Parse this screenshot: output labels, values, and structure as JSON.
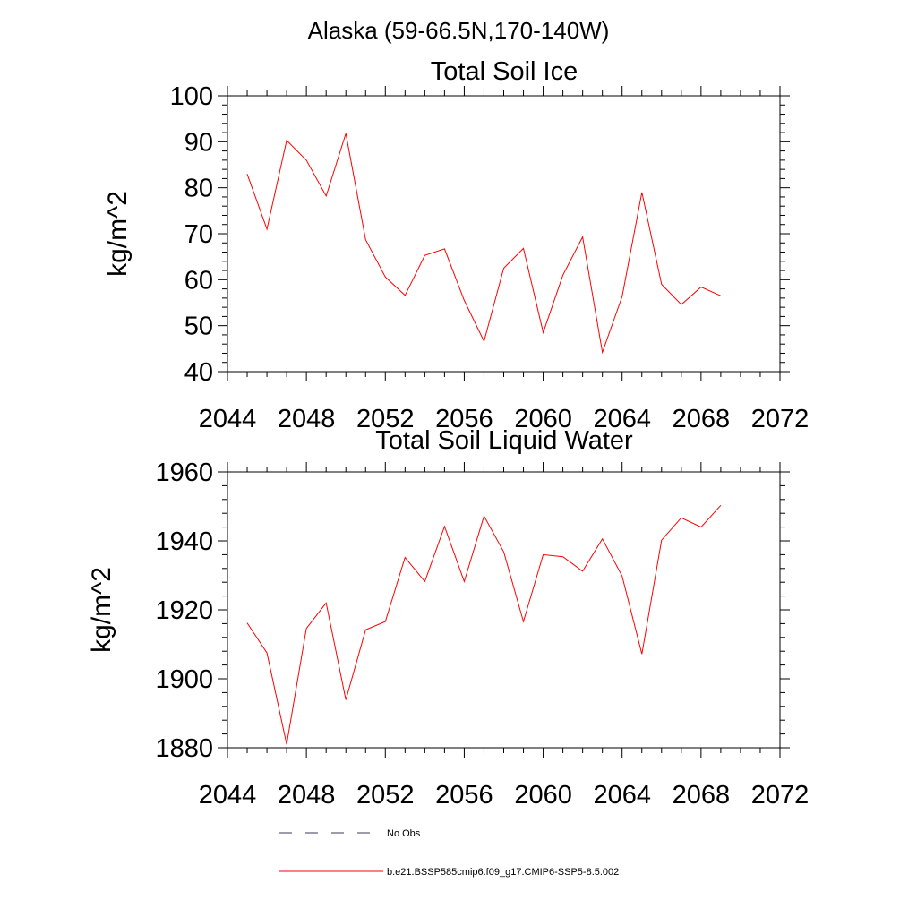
{
  "figure": {
    "suptitle": "Alaska (59-66.5N,170-140W)"
  },
  "chart_data": [
    {
      "type": "line",
      "title": "Total Soil Ice",
      "xlabel": "",
      "ylabel": "kg/m^2",
      "xlim": [
        2044,
        2072
      ],
      "ylim": [
        40,
        100
      ],
      "x_ticks": [
        2044,
        2048,
        2052,
        2056,
        2060,
        2064,
        2068,
        2072
      ],
      "x_tick_labels": [
        "2044",
        "2048",
        "2052",
        "2056",
        "2060",
        "2064",
        "2068",
        "2072"
      ],
      "y_ticks": [
        40,
        50,
        60,
        70,
        80,
        90,
        100
      ],
      "y_tick_labels": [
        "40",
        "50",
        "60",
        "70",
        "80",
        "90",
        "100"
      ],
      "x_minor_step": 1,
      "y_minor_step": 2,
      "grid": false,
      "series": [
        {
          "name": "b.e21.BSSP585cmip6.f09_g17.CMIP6-SSP5-8.5.002",
          "color": "#ff0000",
          "x": [
            2045,
            2046,
            2047,
            2048,
            2049,
            2050,
            2051,
            2052,
            2053,
            2054,
            2055,
            2056,
            2057,
            2058,
            2059,
            2060,
            2061,
            2062,
            2063,
            2064,
            2065,
            2066,
            2067,
            2068,
            2069
          ],
          "values": [
            83.0,
            71.0,
            90.3,
            86.0,
            78.2,
            91.8,
            68.7,
            60.6,
            56.6,
            65.3,
            66.7,
            55.5,
            46.6,
            62.5,
            66.8,
            48.5,
            61.0,
            69.3,
            44.2,
            56.3,
            79.0,
            59.0,
            54.6,
            58.4,
            56.5
          ]
        }
      ]
    },
    {
      "type": "line",
      "title": "Total Soil Liquid Water",
      "xlabel": "",
      "ylabel": "kg/m^2",
      "xlim": [
        2044,
        2072
      ],
      "ylim": [
        1880,
        1960
      ],
      "x_ticks": [
        2044,
        2048,
        2052,
        2056,
        2060,
        2064,
        2068,
        2072
      ],
      "x_tick_labels": [
        "2044",
        "2048",
        "2052",
        "2056",
        "2060",
        "2064",
        "2068",
        "2072"
      ],
      "y_ticks": [
        1880,
        1900,
        1920,
        1940,
        1960
      ],
      "y_tick_labels": [
        "1880",
        "1900",
        "1920",
        "1940",
        "1960"
      ],
      "x_minor_step": 1,
      "y_minor_step": 4,
      "grid": false,
      "series": [
        {
          "name": "b.e21.BSSP585cmip6.f09_g17.CMIP6-SSP5-8.5.002",
          "color": "#ff0000",
          "x": [
            2045,
            2046,
            2047,
            2048,
            2049,
            2050,
            2051,
            2052,
            2053,
            2054,
            2055,
            2056,
            2057,
            2058,
            2059,
            2060,
            2061,
            2062,
            2063,
            2064,
            2065,
            2066,
            2067,
            2068,
            2069
          ],
          "values": [
            1916.2,
            1907.5,
            1881.0,
            1914.6,
            1922.0,
            1893.9,
            1914.2,
            1916.6,
            1935.2,
            1928.2,
            1944.2,
            1928.2,
            1947.2,
            1936.8,
            1916.6,
            1936.0,
            1935.4,
            1931.2,
            1940.6,
            1929.8,
            1907.2,
            1940.2,
            1946.7,
            1944.0,
            1950.3
          ]
        }
      ]
    }
  ],
  "legend": {
    "placement": "bottom",
    "items": [
      {
        "label": "No Obs",
        "color": "#3a3a5a",
        "style": "dashed"
      },
      {
        "label": "b.e21.BSSP585cmip6.f09_g17.CMIP6-SSP5-8.5.002",
        "color": "#ff0000",
        "style": "solid"
      }
    ]
  }
}
